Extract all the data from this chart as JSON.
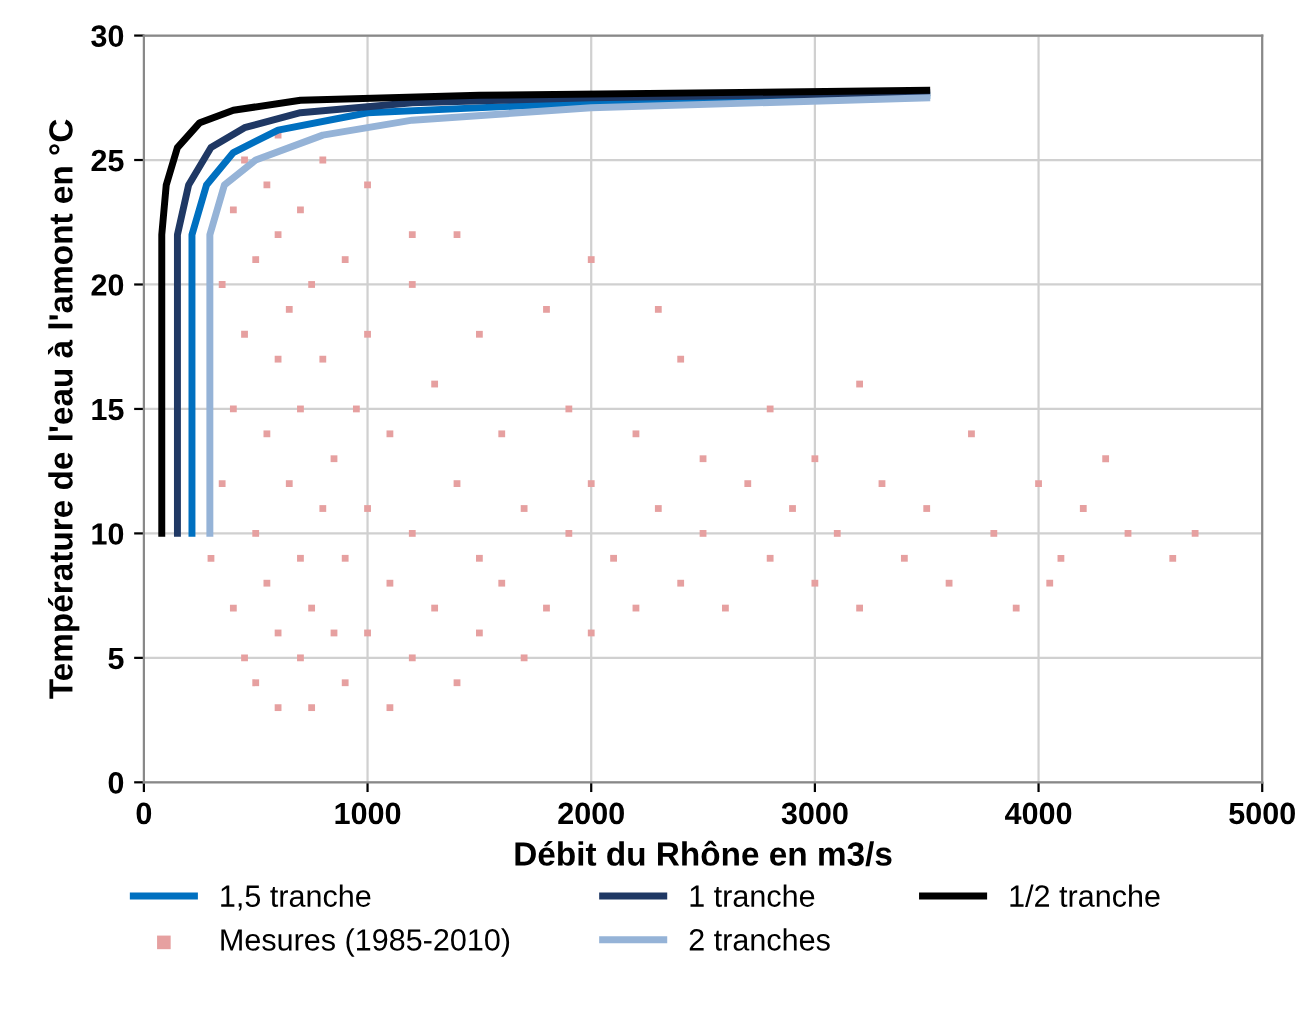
{
  "chart_data": {
    "type": "scatter",
    "xlabel": "Débit du Rhône en m3/s",
    "ylabel": "Température de l'eau à l'amont en °C",
    "xlim": [
      0,
      5000
    ],
    "xticks": [
      0,
      1000,
      2000,
      3000,
      4000,
      5000
    ],
    "ylim": [
      0,
      30
    ],
    "yticks": [
      0,
      5,
      10,
      15,
      20,
      25,
      30
    ],
    "grid": true,
    "legend": "bottom",
    "series": [
      {
        "name": "1,5 tranche",
        "type": "line",
        "color": "#0070c0",
        "x": [
          215,
          215,
          280,
          400,
          600,
          1000,
          2000,
          3500
        ],
        "values": [
          10,
          22,
          24,
          25.3,
          26.2,
          26.9,
          27.3,
          27.6
        ]
      },
      {
        "name": "Mesures (1985-2010)",
        "marker": "square",
        "color": "#e6a0a0",
        "x": [
          300,
          350,
          350,
          400,
          400,
          400,
          450,
          450,
          450,
          500,
          500,
          500,
          550,
          550,
          550,
          600,
          600,
          600,
          600,
          600,
          650,
          650,
          700,
          700,
          700,
          700,
          750,
          750,
          750,
          800,
          800,
          800,
          850,
          850,
          900,
          900,
          900,
          950,
          1000,
          1000,
          1000,
          1000,
          1100,
          1100,
          1100,
          1200,
          1200,
          1200,
          1300,
          1300,
          1400,
          1400,
          1400,
          1500,
          1500,
          1500,
          1600,
          1600,
          1700,
          1700,
          1800,
          1800,
          1900,
          1900,
          2000,
          2000,
          2000,
          2100,
          2200,
          2200,
          2300,
          2400,
          2400,
          2500,
          2500,
          2600,
          2700,
          2800,
          2800,
          2900,
          3000,
          3000,
          3100,
          3200,
          3300,
          3400,
          3500,
          3600,
          3700,
          3800,
          3900,
          4000,
          4100,
          4200,
          4300,
          4400,
          4600,
          4700,
          4050,
          3200,
          2300,
          1200
        ],
        "values": [
          9,
          12,
          20,
          7,
          15,
          23,
          5,
          18,
          25,
          4,
          10,
          21,
          8,
          14,
          24,
          3,
          6,
          17,
          22,
          26,
          12,
          19,
          5,
          9,
          15,
          23,
          3,
          7,
          20,
          11,
          17,
          25,
          6,
          13,
          4,
          9,
          21,
          15,
          6,
          11,
          18,
          24,
          3,
          8,
          14,
          5,
          10,
          20,
          7,
          16,
          4,
          12,
          22,
          6,
          9,
          18,
          8,
          14,
          5,
          11,
          7,
          19,
          10,
          15,
          6,
          12,
          21,
          9,
          7,
          14,
          11,
          8,
          17,
          10,
          13,
          7,
          12,
          9,
          15,
          11,
          8,
          13,
          10,
          7,
          12,
          9,
          11,
          8,
          14,
          10,
          7,
          12,
          9,
          11,
          13,
          10,
          9,
          10,
          8,
          16,
          19,
          22
        ]
      },
      {
        "name": "1 tranche",
        "type": "line",
        "color": "#1f3864",
        "x": [
          150,
          150,
          200,
          300,
          450,
          700,
          1200,
          2000,
          3500
        ],
        "values": [
          10,
          22,
          24,
          25.5,
          26.3,
          26.9,
          27.3,
          27.5,
          27.7
        ]
      },
      {
        "name": "2 tranches",
        "type": "line",
        "color": "#95b3d7",
        "x": [
          295,
          295,
          360,
          500,
          800,
          1200,
          2000,
          3500
        ],
        "values": [
          10,
          22,
          24,
          25,
          26,
          26.6,
          27.1,
          27.5
        ]
      },
      {
        "name": "1/2 tranche",
        "type": "line",
        "color": "#000000",
        "x": [
          80,
          80,
          100,
          150,
          250,
          400,
          700,
          1500,
          3500
        ],
        "values": [
          10,
          22,
          24,
          25.5,
          26.5,
          27,
          27.4,
          27.6,
          27.8
        ]
      }
    ]
  }
}
